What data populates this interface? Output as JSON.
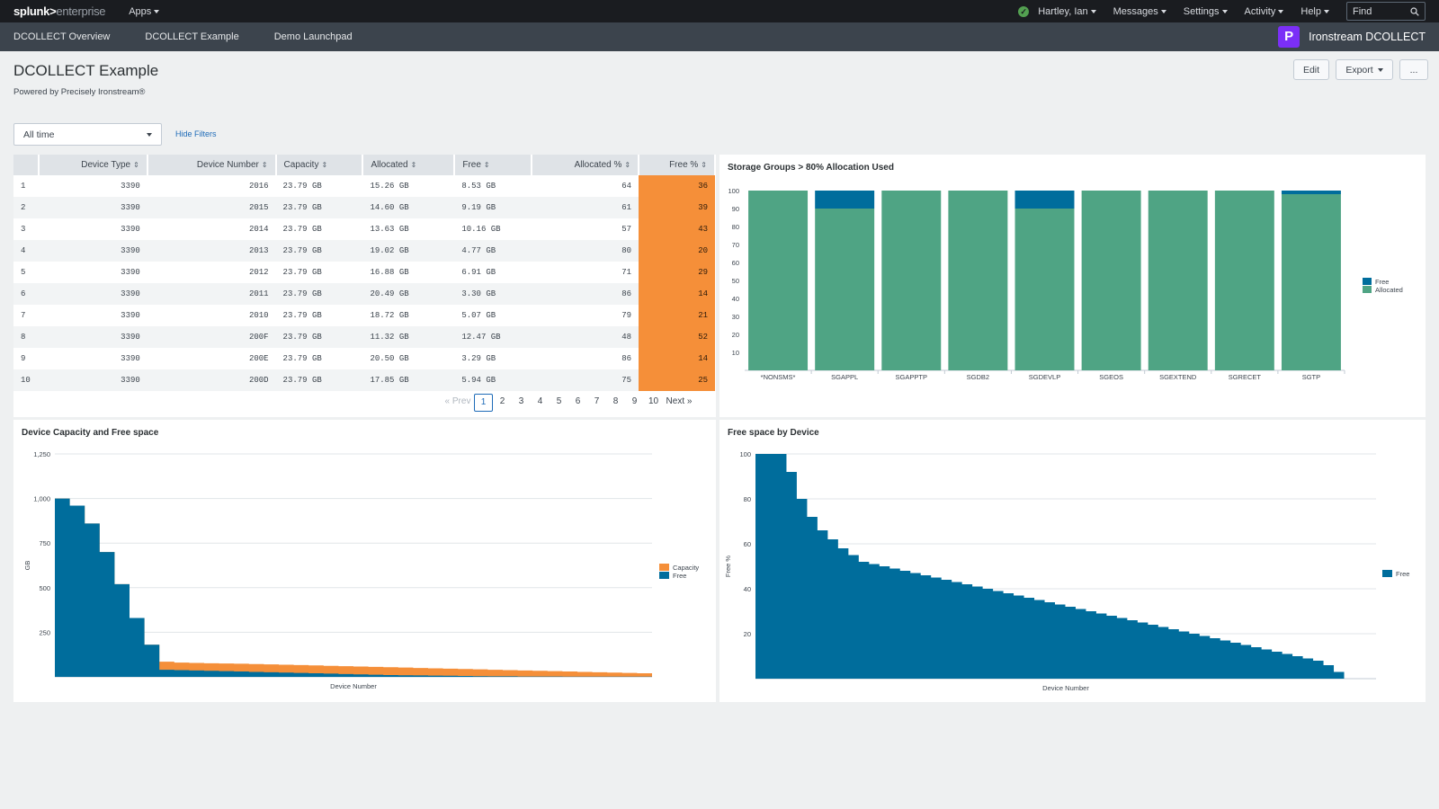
{
  "topbar": {
    "logo_bold": "splunk>",
    "logo_rest": "enterprise",
    "apps_label": "Apps",
    "status_icon": "check-circle-icon",
    "user_label": "Hartley, Ian",
    "messages_label": "Messages",
    "settings_label": "Settings",
    "activity_label": "Activity",
    "help_label": "Help",
    "find_placeholder": "Find",
    "find_icon": "search-icon"
  },
  "appbar": {
    "nav": [
      "DCOLLECT Overview",
      "DCOLLECT Example",
      "Demo Launchpad"
    ],
    "brand_name": "Ironstream DCOLLECT",
    "brand_icon_letter": "P"
  },
  "header": {
    "title": "DCOLLECT Example",
    "subtitle": "Powered by Precisely Ironstream®",
    "edit_label": "Edit",
    "export_label": "Export",
    "more_label": "..."
  },
  "filters": {
    "time_value": "All time",
    "hide_filters_label": "Hide Filters"
  },
  "table": {
    "columns": [
      "",
      "Device Type",
      "Device Number",
      "Capacity",
      "Allocated",
      "Free",
      "Allocated %",
      "Free %"
    ],
    "rows": [
      [
        "1",
        "3390",
        "2016",
        "23.79 GB",
        "15.26 GB",
        "8.53 GB",
        "64",
        "36"
      ],
      [
        "2",
        "3390",
        "2015",
        "23.79 GB",
        "14.60 GB",
        "9.19 GB",
        "61",
        "39"
      ],
      [
        "3",
        "3390",
        "2014",
        "23.79 GB",
        "13.63 GB",
        "10.16 GB",
        "57",
        "43"
      ],
      [
        "4",
        "3390",
        "2013",
        "23.79 GB",
        "19.02 GB",
        "4.77 GB",
        "80",
        "20"
      ],
      [
        "5",
        "3390",
        "2012",
        "23.79 GB",
        "16.88 GB",
        "6.91 GB",
        "71",
        "29"
      ],
      [
        "6",
        "3390",
        "2011",
        "23.79 GB",
        "20.49 GB",
        "3.30 GB",
        "86",
        "14"
      ],
      [
        "7",
        "3390",
        "2010",
        "23.79 GB",
        "18.72 GB",
        "5.07 GB",
        "79",
        "21"
      ],
      [
        "8",
        "3390",
        "200F",
        "23.79 GB",
        "11.32 GB",
        "12.47 GB",
        "48",
        "52"
      ],
      [
        "9",
        "3390",
        "200E",
        "23.79 GB",
        "20.50 GB",
        "3.29 GB",
        "86",
        "14"
      ],
      [
        "10",
        "3390",
        "200D",
        "23.79 GB",
        "17.85 GB",
        "5.94 GB",
        "75",
        "25"
      ]
    ],
    "highlight_color": "#f58f39"
  },
  "pager": {
    "prev_label": "« Prev",
    "pages": [
      "1",
      "2",
      "3",
      "4",
      "5",
      "6",
      "7",
      "8",
      "9",
      "10"
    ],
    "current": "1",
    "next_label": "Next »"
  },
  "chart_data": [
    {
      "type": "bar",
      "stacked": true,
      "title": "Storage Groups > 80% Allocation Used",
      "categories": [
        "*NONSMS*",
        "SGAPPL",
        "SGAPPTP",
        "SGDB2",
        "SGDEVLP",
        "SGEOS",
        "SGEXTEND",
        "SGRECET",
        "SGTP"
      ],
      "series": [
        {
          "name": "Free",
          "color": "#006d9c",
          "values": [
            0,
            10,
            0,
            0,
            10,
            0,
            0,
            0,
            2
          ]
        },
        {
          "name": "Allocated",
          "color": "#4fa484",
          "values": [
            100,
            90,
            100,
            100,
            90,
            100,
            100,
            100,
            98
          ]
        }
      ],
      "ylim": [
        0,
        100
      ],
      "yticks": [
        10,
        20,
        30,
        40,
        50,
        60,
        70,
        80,
        90,
        100
      ],
      "legend": "right"
    },
    {
      "type": "area",
      "title": "Device Capacity and Free space",
      "xlabel": "Device Number",
      "ylabel": "GB",
      "ylim": [
        0,
        1250
      ],
      "yticks": [
        250,
        500,
        750,
        1000,
        1250
      ],
      "ytick_labels": [
        "250",
        "500",
        "750",
        "1,000",
        "1,250"
      ],
      "series": [
        {
          "name": "Capacity",
          "color": "#f58f39",
          "values": [
            1000,
            960,
            860,
            700,
            520,
            330,
            180,
            85,
            80,
            78,
            76,
            75,
            74,
            72,
            70,
            68,
            66,
            64,
            62,
            60,
            58,
            56,
            54,
            52,
            50,
            48,
            46,
            44,
            42,
            40,
            38,
            36,
            34,
            32,
            30,
            28,
            26,
            24,
            22,
            20
          ]
        },
        {
          "name": "Free",
          "color": "#006d9c",
          "values": [
            1000,
            960,
            860,
            700,
            520,
            330,
            180,
            40,
            38,
            36,
            34,
            32,
            30,
            28,
            26,
            24,
            22,
            20,
            18,
            16,
            14,
            12,
            10,
            9,
            8,
            7,
            6,
            5,
            4,
            3,
            3,
            2,
            2,
            2,
            1,
            1,
            1,
            1,
            1,
            1
          ]
        }
      ],
      "legend": "right"
    },
    {
      "type": "area",
      "title": "Free space by Device",
      "xlabel": "Device Number",
      "ylabel": "Free %",
      "ylim": [
        0,
        100
      ],
      "yticks": [
        20,
        40,
        60,
        80,
        100
      ],
      "series": [
        {
          "name": "Free",
          "color": "#006d9c",
          "values": [
            100,
            100,
            100,
            92,
            80,
            72,
            66,
            62,
            58,
            55,
            52,
            51,
            50,
            49,
            48,
            47,
            46,
            45,
            44,
            43,
            42,
            41,
            40,
            39,
            38,
            37,
            36,
            35,
            34,
            33,
            32,
            31,
            30,
            29,
            28,
            27,
            26,
            25,
            24,
            23,
            22,
            21,
            20,
            19,
            18,
            17,
            16,
            15,
            14,
            13,
            12,
            11,
            10,
            9,
            8,
            6,
            3,
            0
          ]
        }
      ],
      "legend": "right"
    }
  ]
}
